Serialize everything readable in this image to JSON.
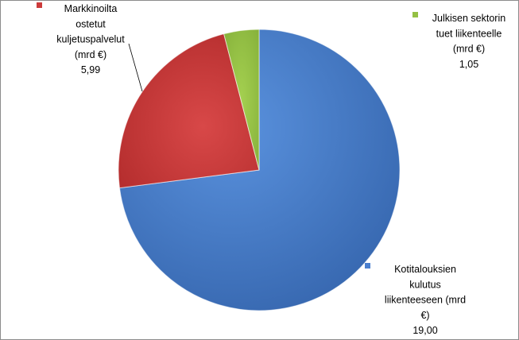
{
  "chart_data": {
    "type": "pie",
    "start_angle": "top",
    "direction": "clockwise",
    "slices": [
      {
        "label_lines": [
          "Kotitalouksien",
          "kulutus",
          "liikenteeseen (mrd",
          "€)"
        ],
        "value": 19.0,
        "value_label": "19,00",
        "color": "#4a7fcf"
      },
      {
        "label_lines": [
          "Markkinoilta",
          "ostetut",
          "kuljetuspalvelut",
          "(mrd €)"
        ],
        "value": 5.99,
        "value_label": "5,99",
        "color": "#cc3b3b"
      },
      {
        "label_lines": [
          "Julkisen sektorin",
          "tuet liikenteelle",
          "(mrd €)"
        ],
        "value": 1.05,
        "value_label": "1,05",
        "color": "#94c044"
      }
    ]
  }
}
